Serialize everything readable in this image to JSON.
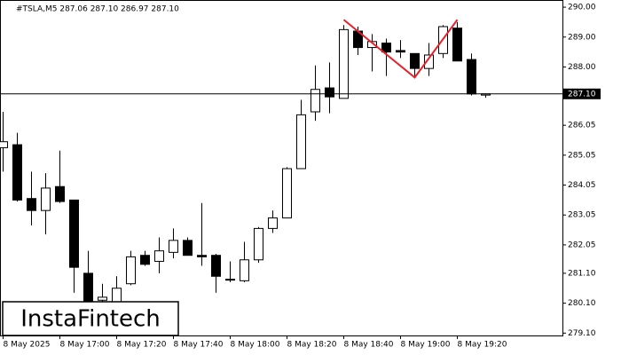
{
  "chart_data": {
    "type": "candlestick",
    "title": "#TSLA,M5  287.06 287.10 286.97 287.10",
    "categories": [
      "8 May 2025",
      null,
      null,
      null,
      "8 May 17:00",
      null,
      null,
      null,
      "8 May 17:20",
      null,
      null,
      null,
      "8 May 17:40",
      null,
      null,
      null,
      "8 May 18:00",
      null,
      null,
      null,
      "8 May 18:20",
      null,
      null,
      null,
      "8 May 18:40",
      null,
      null,
      null,
      "8 May 19:00",
      null,
      null,
      null,
      "8 May 19:20",
      null,
      null
    ],
    "open": [
      285.3,
      285.4,
      283.6,
      283.2,
      284.0,
      283.55,
      281.1,
      280.2,
      280.0,
      280.75,
      281.7,
      281.5,
      281.8,
      282.2,
      281.7,
      281.7,
      280.9,
      280.85,
      281.55,
      282.6,
      282.95,
      284.6,
      286.5,
      287.3,
      286.95,
      289.2,
      288.65,
      288.8,
      288.55,
      288.45,
      287.95,
      288.45,
      289.3,
      288.25,
      287.06
    ],
    "high": [
      286.5,
      285.8,
      284.5,
      284.45,
      285.2,
      283.55,
      281.85,
      280.75,
      281.0,
      281.85,
      281.85,
      282.3,
      282.6,
      282.3,
      283.45,
      281.75,
      281.5,
      282.15,
      282.65,
      283.2,
      284.65,
      286.9,
      288.05,
      288.15,
      289.4,
      289.35,
      289.1,
      288.95,
      288.9,
      288.45,
      288.8,
      289.4,
      289.5,
      288.45,
      287.1
    ],
    "low": [
      284.5,
      283.5,
      282.7,
      282.4,
      283.45,
      280.45,
      279.85,
      280.0,
      279.9,
      280.7,
      281.35,
      281.1,
      281.6,
      281.7,
      281.35,
      280.45,
      280.8,
      280.8,
      281.45,
      282.45,
      282.95,
      284.6,
      286.2,
      286.45,
      286.95,
      288.4,
      287.85,
      287.7,
      288.3,
      287.7,
      287.7,
      288.3,
      288.2,
      287.05,
      286.97
    ],
    "close": [
      285.5,
      283.55,
      283.2,
      283.95,
      283.5,
      281.3,
      280.0,
      280.3,
      280.6,
      281.65,
      281.4,
      281.85,
      282.2,
      281.7,
      281.65,
      281.0,
      280.9,
      281.55,
      282.6,
      282.95,
      284.6,
      286.4,
      287.25,
      287.0,
      289.25,
      288.65,
      288.85,
      288.5,
      288.5,
      287.95,
      288.4,
      289.35,
      288.2,
      287.1,
      287.1
    ],
    "ylim": [
      279.02,
      290.24
    ],
    "yticks": [
      {
        "value": 290,
        "label": "290.00"
      },
      {
        "value": 289,
        "label": "289.00"
      },
      {
        "value": 288,
        "label": "288.00"
      },
      {
        "value": 286.05,
        "label": "286.05"
      },
      {
        "value": 285.05,
        "label": "285.05"
      },
      {
        "value": 284.05,
        "label": "284.05"
      },
      {
        "value": 283.05,
        "label": "283.05"
      },
      {
        "value": 282.05,
        "label": "282.05"
      },
      {
        "value": 281.1,
        "label": "281.10"
      },
      {
        "value": 280.1,
        "label": "280.10"
      },
      {
        "value": 279.1,
        "label": "279.10"
      }
    ],
    "current_price": {
      "value": 287.1,
      "label": "287.10"
    },
    "pattern": {
      "color": "#e8202a",
      "points": [
        {
          "index": 24,
          "price": 289.58
        },
        {
          "index": 29,
          "price": 287.65
        },
        {
          "index": 32,
          "price": 289.58
        }
      ]
    },
    "logo": "InstaFintech"
  }
}
